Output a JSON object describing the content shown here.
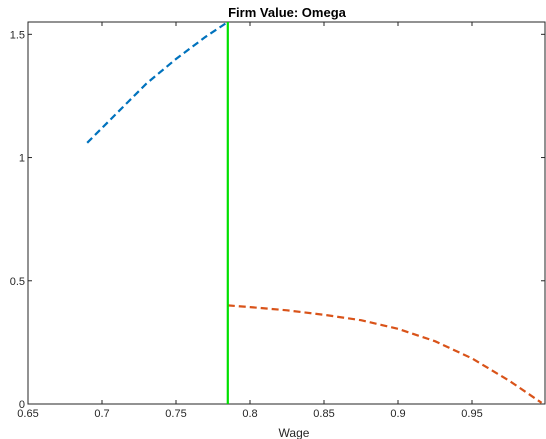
{
  "chart_data": {
    "type": "line",
    "title": "Firm Value: Omega",
    "xlabel": "Wage",
    "ylabel": "",
    "xlim": [
      0.65,
      1.0
    ],
    "ylim": [
      0,
      1.55
    ],
    "x_ticks": [
      0.65,
      0.7,
      0.75,
      0.8,
      0.85,
      0.9,
      0.95
    ],
    "x_tick_labels": [
      "0.65",
      "0.7",
      "0.75",
      "0.8",
      "0.85",
      "0.9",
      "0.95"
    ],
    "y_ticks": [
      0,
      0.5,
      1,
      1.5
    ],
    "y_tick_labels": [
      "0",
      "0.5",
      "1",
      "1.5"
    ],
    "grid": false,
    "series": [
      {
        "color": "#0072BD",
        "style": "dashed",
        "x": [
          0.69,
          0.71,
          0.73,
          0.75,
          0.77,
          0.785
        ],
        "y": [
          1.06,
          1.18,
          1.3,
          1.4,
          1.49,
          1.55
        ]
      },
      {
        "color": "#D95319",
        "style": "dashed",
        "x": [
          0.785,
          0.8,
          0.825,
          0.85,
          0.875,
          0.9,
          0.925,
          0.95,
          0.975,
          0.997
        ],
        "y": [
          0.4,
          0.393,
          0.38,
          0.362,
          0.34,
          0.305,
          0.255,
          0.185,
          0.095,
          0.005
        ]
      }
    ],
    "vertical_lines": [
      {
        "x": 0.785,
        "color": "#00E000"
      }
    ]
  }
}
